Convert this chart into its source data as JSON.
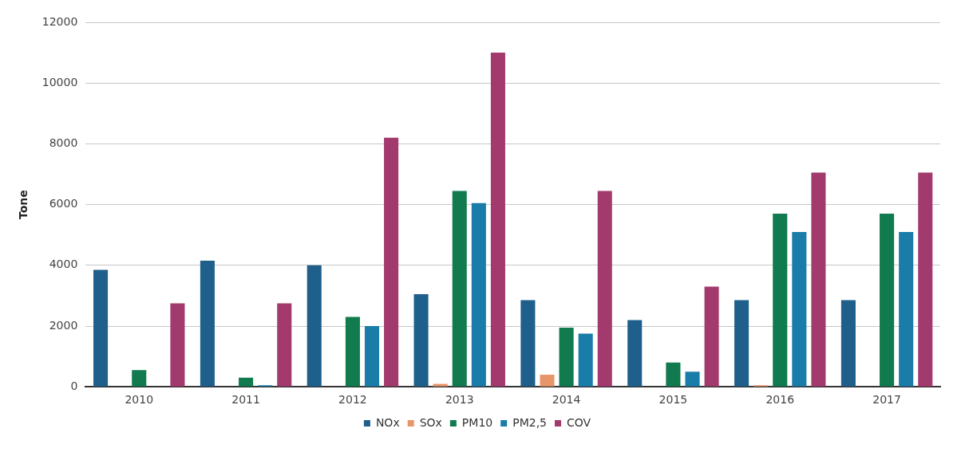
{
  "chart_data": {
    "type": "bar",
    "ylabel": "Tone",
    "categories": [
      "2010",
      "2011",
      "2012",
      "2013",
      "2014",
      "2015",
      "2016",
      "2017"
    ],
    "series": [
      {
        "name": "NOx",
        "color": "#1f5f8b",
        "values": [
          3850,
          4150,
          4000,
          3050,
          2850,
          2200,
          2850,
          2850
        ]
      },
      {
        "name": "SOx",
        "color": "#e8956a",
        "values": [
          0,
          0,
          0,
          100,
          400,
          0,
          50,
          0
        ]
      },
      {
        "name": "PM10",
        "color": "#117a4f",
        "values": [
          550,
          300,
          2300,
          6450,
          1950,
          800,
          5700,
          5700
        ]
      },
      {
        "name": "PM2,5",
        "color": "#1a7ca8",
        "values": [
          0,
          50,
          2000,
          6050,
          1750,
          500,
          5100,
          5100
        ]
      },
      {
        "name": "COV",
        "color": "#a33a6e",
        "values": [
          2750,
          2750,
          8200,
          11000,
          6450,
          3300,
          7050,
          7050
        ]
      }
    ],
    "ylim": [
      0,
      12000
    ],
    "yticks": [
      0,
      2000,
      4000,
      6000,
      8000,
      10000,
      12000
    ],
    "grid": "y",
    "legend": "bottom"
  }
}
